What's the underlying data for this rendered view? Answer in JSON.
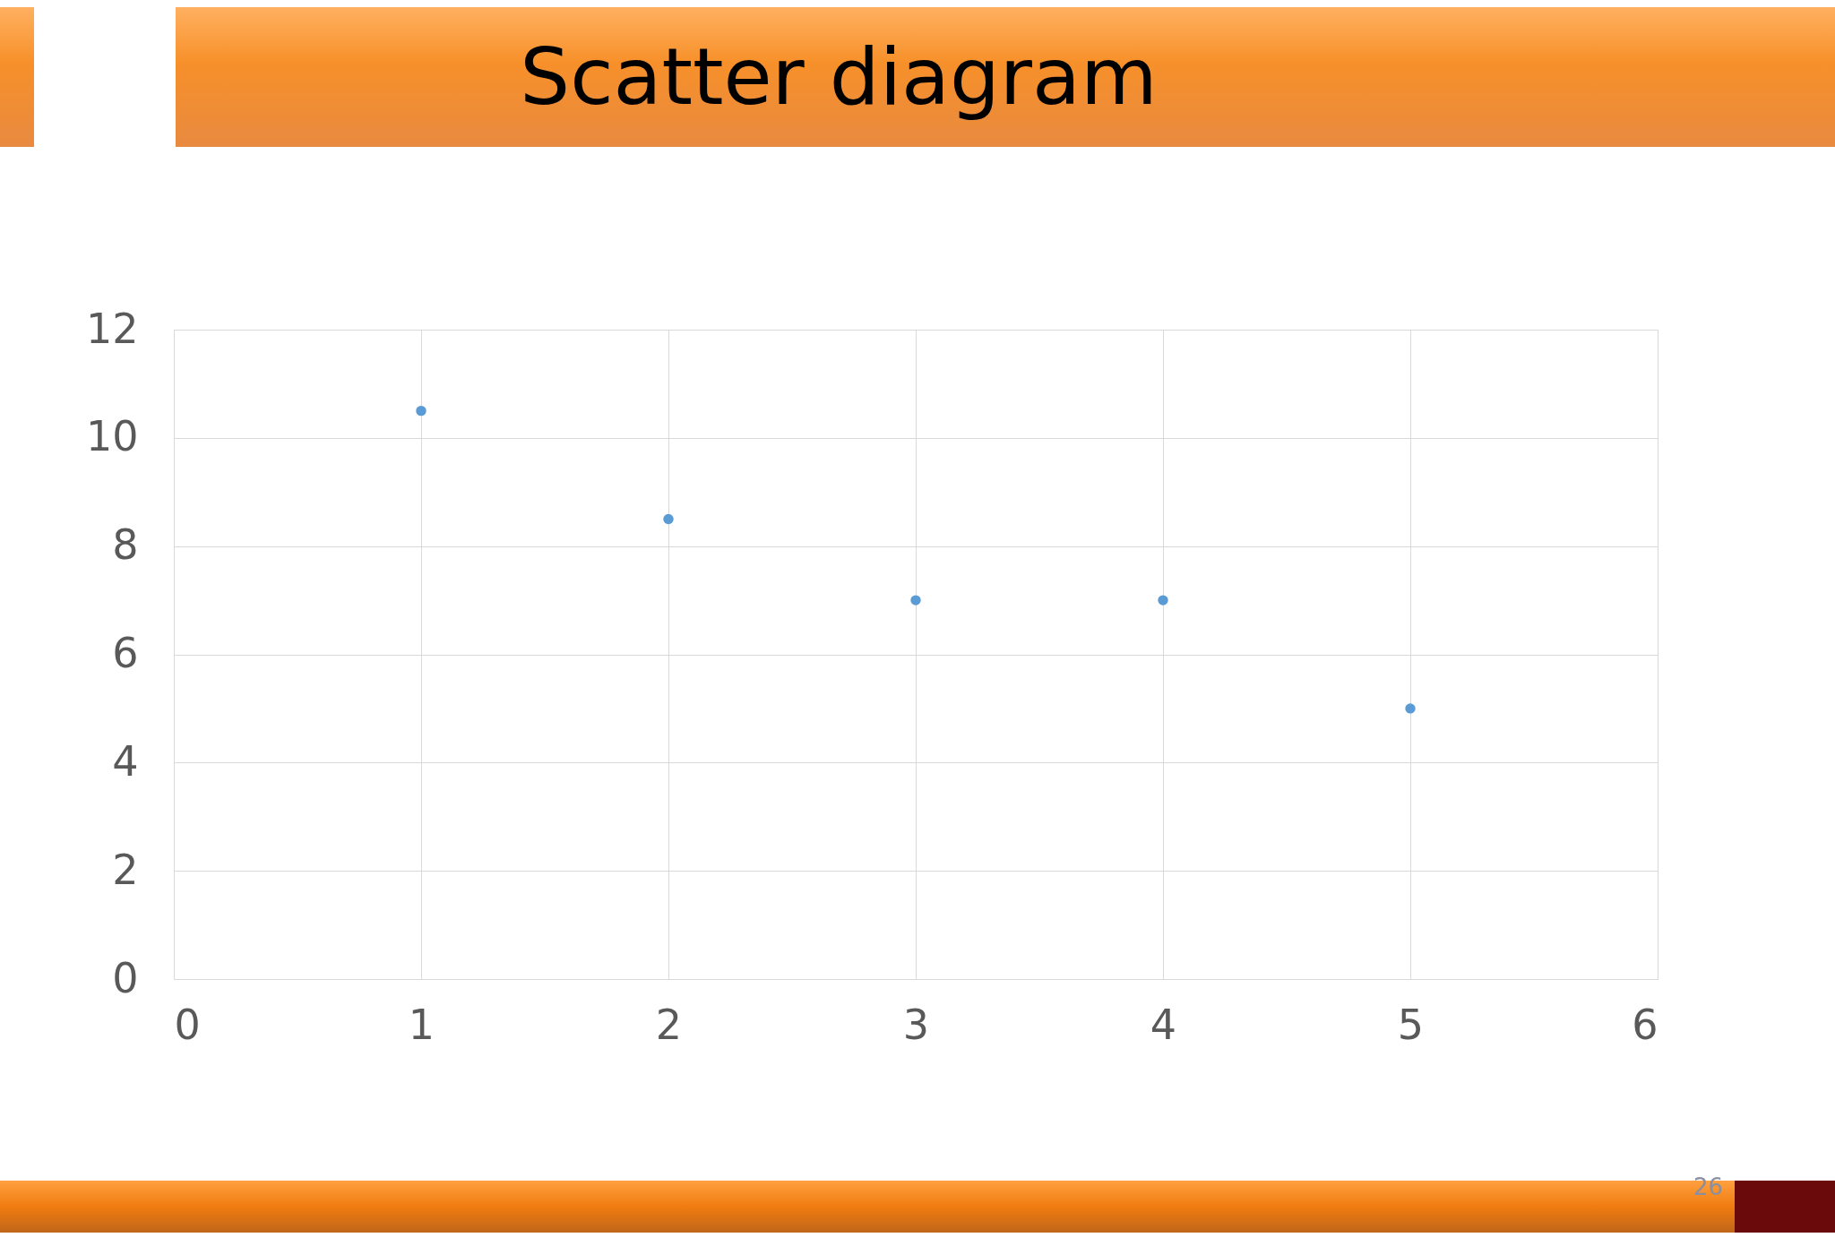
{
  "chart_data": {
    "type": "scatter",
    "title": "Scatter diagram",
    "x": [
      1,
      2,
      3,
      4,
      5
    ],
    "series": [
      {
        "color": "#5b9bd5",
        "values": [
          10.5,
          8.5,
          7,
          7,
          5
        ]
      }
    ],
    "xlim": [
      0,
      6
    ],
    "xticks": [
      0,
      1,
      2,
      3,
      4,
      5,
      6
    ],
    "ylim": [
      0,
      12
    ],
    "yticks": [
      0,
      2,
      4,
      6,
      8,
      10,
      12
    ],
    "grid": true,
    "marker": "circle",
    "annotations": [
      "26"
    ]
  }
}
